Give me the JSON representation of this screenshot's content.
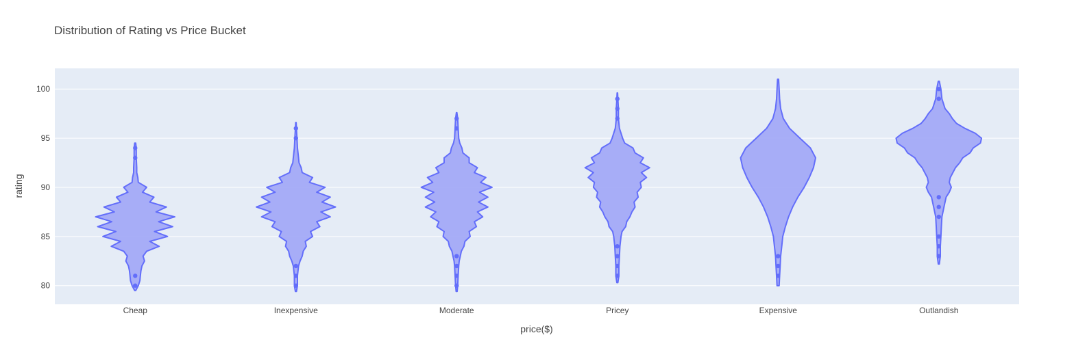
{
  "chart_data": {
    "type": "violin",
    "title": "Distribution of Rating vs Price Bucket",
    "xlabel": "price($)",
    "ylabel": "rating",
    "categories": [
      "Cheap",
      "Inexpensive",
      "Moderate",
      "Pricey",
      "Expensive",
      "Outlandish"
    ],
    "ylim": [
      78.1,
      102.1
    ],
    "yticks": [
      80,
      85,
      90,
      95,
      100
    ],
    "grid": true,
    "colors": {
      "fill": "#a3aaf7",
      "line": "#636efa",
      "plot_bg": "#e5ecf6",
      "grid": "#ffffff",
      "text": "#444444"
    },
    "violins": [
      {
        "category": "Cheap",
        "profile": [
          [
            79.5,
            0.01
          ],
          [
            80,
            0.06
          ],
          [
            80.5,
            0.09
          ],
          [
            81,
            0.1
          ],
          [
            81.5,
            0.11
          ],
          [
            82,
            0.13
          ],
          [
            82.5,
            0.18
          ],
          [
            83,
            0.15
          ],
          [
            83.5,
            0.22
          ],
          [
            84,
            0.46
          ],
          [
            84.5,
            0.28
          ],
          [
            85,
            0.62
          ],
          [
            85.5,
            0.37
          ],
          [
            86,
            0.72
          ],
          [
            86.5,
            0.45
          ],
          [
            87,
            0.76
          ],
          [
            87.5,
            0.4
          ],
          [
            88,
            0.6
          ],
          [
            88.5,
            0.28
          ],
          [
            89,
            0.36
          ],
          [
            89.5,
            0.14
          ],
          [
            90,
            0.22
          ],
          [
            90.5,
            0.06
          ],
          [
            91,
            0.05
          ],
          [
            91.5,
            0.03
          ],
          [
            92,
            0.03
          ],
          [
            93,
            0.02
          ],
          [
            94,
            0.02
          ],
          [
            94.5,
            0.01
          ]
        ],
        "outliers": [
          80,
          81,
          93,
          94
        ]
      },
      {
        "category": "Inexpensive",
        "profile": [
          [
            79.4,
            0.01
          ],
          [
            80,
            0.03
          ],
          [
            80.5,
            0.03
          ],
          [
            81,
            0.03
          ],
          [
            81.5,
            0.04
          ],
          [
            82,
            0.05
          ],
          [
            82.5,
            0.08
          ],
          [
            83,
            0.12
          ],
          [
            83.5,
            0.14
          ],
          [
            84,
            0.2
          ],
          [
            84.5,
            0.18
          ],
          [
            85,
            0.32
          ],
          [
            85.5,
            0.28
          ],
          [
            86,
            0.46
          ],
          [
            86.5,
            0.4
          ],
          [
            87,
            0.66
          ],
          [
            87.5,
            0.48
          ],
          [
            88,
            0.76
          ],
          [
            88.5,
            0.5
          ],
          [
            89,
            0.66
          ],
          [
            89.5,
            0.4
          ],
          [
            90,
            0.56
          ],
          [
            90.5,
            0.26
          ],
          [
            91,
            0.32
          ],
          [
            91.5,
            0.12
          ],
          [
            92,
            0.1
          ],
          [
            92.5,
            0.06
          ],
          [
            93,
            0.05
          ],
          [
            94,
            0.03
          ],
          [
            95,
            0.02
          ],
          [
            96,
            0.01
          ],
          [
            96.6,
            0.005
          ]
        ],
        "outliers": [
          80,
          81,
          82,
          95,
          96
        ]
      },
      {
        "category": "Moderate",
        "profile": [
          [
            79.4,
            0.01
          ],
          [
            80,
            0.02
          ],
          [
            81,
            0.03
          ],
          [
            82,
            0.04
          ],
          [
            82.5,
            0.05
          ],
          [
            83,
            0.07
          ],
          [
            83.5,
            0.09
          ],
          [
            84,
            0.14
          ],
          [
            84.5,
            0.16
          ],
          [
            85,
            0.26
          ],
          [
            85.5,
            0.24
          ],
          [
            86,
            0.38
          ],
          [
            86.5,
            0.34
          ],
          [
            87,
            0.5
          ],
          [
            87.5,
            0.4
          ],
          [
            88,
            0.6
          ],
          [
            88.5,
            0.42
          ],
          [
            89,
            0.6
          ],
          [
            89.5,
            0.44
          ],
          [
            90,
            0.68
          ],
          [
            90.5,
            0.46
          ],
          [
            91,
            0.56
          ],
          [
            91.5,
            0.34
          ],
          [
            92,
            0.4
          ],
          [
            92.5,
            0.24
          ],
          [
            93,
            0.24
          ],
          [
            93.5,
            0.12
          ],
          [
            94,
            0.1
          ],
          [
            94.5,
            0.06
          ],
          [
            95,
            0.04
          ],
          [
            96,
            0.03
          ],
          [
            97,
            0.02
          ],
          [
            97.6,
            0.005
          ]
        ],
        "outliers": [
          80,
          81,
          82,
          83,
          96,
          97
        ]
      },
      {
        "category": "Pricey",
        "profile": [
          [
            80.3,
            0.01
          ],
          [
            81,
            0.03
          ],
          [
            82,
            0.03
          ],
          [
            83,
            0.04
          ],
          [
            84,
            0.05
          ],
          [
            85,
            0.07
          ],
          [
            85.5,
            0.09
          ],
          [
            86,
            0.16
          ],
          [
            86.5,
            0.18
          ],
          [
            87,
            0.24
          ],
          [
            87.5,
            0.28
          ],
          [
            88,
            0.34
          ],
          [
            88.5,
            0.32
          ],
          [
            89,
            0.4
          ],
          [
            89.5,
            0.38
          ],
          [
            90,
            0.46
          ],
          [
            90.5,
            0.44
          ],
          [
            91,
            0.56
          ],
          [
            91.5,
            0.46
          ],
          [
            92,
            0.62
          ],
          [
            92.5,
            0.44
          ],
          [
            93,
            0.5
          ],
          [
            93.5,
            0.34
          ],
          [
            94,
            0.3
          ],
          [
            94.5,
            0.14
          ],
          [
            95,
            0.1
          ],
          [
            96,
            0.04
          ],
          [
            97,
            0.02
          ],
          [
            98,
            0.02
          ],
          [
            99,
            0.01
          ],
          [
            99.6,
            0.005
          ]
        ],
        "outliers": [
          81,
          82,
          83,
          84,
          97,
          98,
          99
        ]
      },
      {
        "category": "Expensive",
        "profile": [
          [
            80,
            0.02
          ],
          [
            81,
            0.03
          ],
          [
            82,
            0.04
          ],
          [
            83,
            0.05
          ],
          [
            84,
            0.07
          ],
          [
            85,
            0.09
          ],
          [
            86,
            0.14
          ],
          [
            87,
            0.2
          ],
          [
            88,
            0.28
          ],
          [
            89,
            0.38
          ],
          [
            90,
            0.5
          ],
          [
            91,
            0.6
          ],
          [
            92,
            0.68
          ],
          [
            93,
            0.72
          ],
          [
            94,
            0.62
          ],
          [
            95,
            0.42
          ],
          [
            96,
            0.22
          ],
          [
            97,
            0.1
          ],
          [
            98,
            0.05
          ],
          [
            99,
            0.03
          ],
          [
            100,
            0.02
          ],
          [
            101,
            0.01
          ]
        ],
        "outliers": [
          81,
          82,
          83
        ]
      },
      {
        "category": "Outlandish",
        "profile": [
          [
            82.2,
            0.01
          ],
          [
            83,
            0.03
          ],
          [
            84,
            0.03
          ],
          [
            85,
            0.04
          ],
          [
            86,
            0.05
          ],
          [
            87,
            0.06
          ],
          [
            87.5,
            0.08
          ],
          [
            88,
            0.1
          ],
          [
            89,
            0.14
          ],
          [
            89.5,
            0.2
          ],
          [
            90,
            0.24
          ],
          [
            90.5,
            0.2
          ],
          [
            91,
            0.22
          ],
          [
            92,
            0.32
          ],
          [
            92.5,
            0.4
          ],
          [
            93,
            0.46
          ],
          [
            93.5,
            0.6
          ],
          [
            94,
            0.66
          ],
          [
            94.5,
            0.8
          ],
          [
            95,
            0.82
          ],
          [
            95.5,
            0.7
          ],
          [
            96,
            0.5
          ],
          [
            96.5,
            0.34
          ],
          [
            97,
            0.26
          ],
          [
            97.5,
            0.2
          ],
          [
            98,
            0.12
          ],
          [
            99,
            0.06
          ],
          [
            100,
            0.04
          ],
          [
            100.8,
            0.01
          ]
        ],
        "outliers": [
          83,
          84,
          85,
          87,
          88,
          89,
          99,
          100
        ]
      }
    ]
  }
}
